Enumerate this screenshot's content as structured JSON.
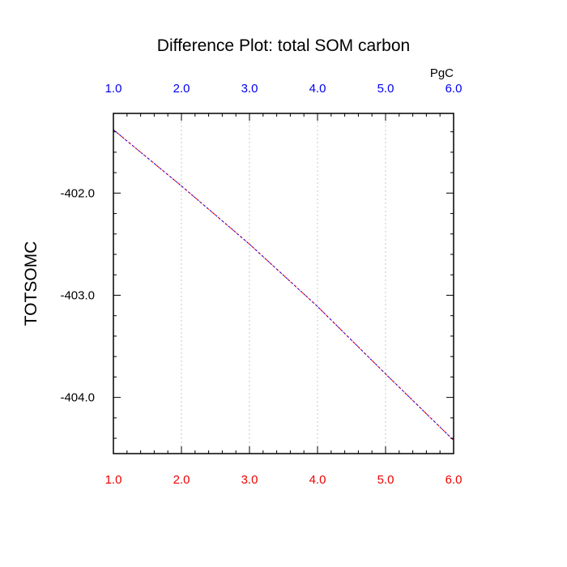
{
  "chart_data": {
    "type": "line",
    "title": "Difference Plot: total SOM carbon",
    "units": "PgC",
    "xlabel": "",
    "ylabel": "TOTSOMC",
    "xlim": [
      1.0,
      6.0
    ],
    "ylim": [
      -404.55,
      -401.22
    ],
    "x_ticks": [
      1.0,
      2.0,
      3.0,
      4.0,
      5.0,
      6.0
    ],
    "x_tick_labels": [
      "1.0",
      "2.0",
      "3.0",
      "4.0",
      "5.0",
      "6.0"
    ],
    "y_ticks": [
      -402.0,
      -403.0,
      -404.0
    ],
    "y_tick_labels": [
      "-402.0",
      "-403.0",
      "-404.0"
    ],
    "grid": "vertical dotted",
    "colors": {
      "top_ticks": "#0000ee",
      "bottom_ticks": "#ee0000",
      "series_a": "#ff0000",
      "series_b": "#0000ff"
    },
    "series": [
      {
        "x": [
          1,
          2,
          3,
          4,
          5,
          6
        ],
        "values": [
          -401.38,
          -401.93,
          -402.5,
          -403.11,
          -403.77,
          -404.42
        ],
        "color": "#ff0000",
        "dash": "4,2"
      },
      {
        "x": [
          1,
          2,
          3,
          4,
          5,
          6
        ],
        "values": [
          -401.38,
          -401.93,
          -402.5,
          -403.11,
          -403.77,
          -404.42
        ],
        "color": "#0000ff",
        "dash": "2,3"
      }
    ]
  }
}
